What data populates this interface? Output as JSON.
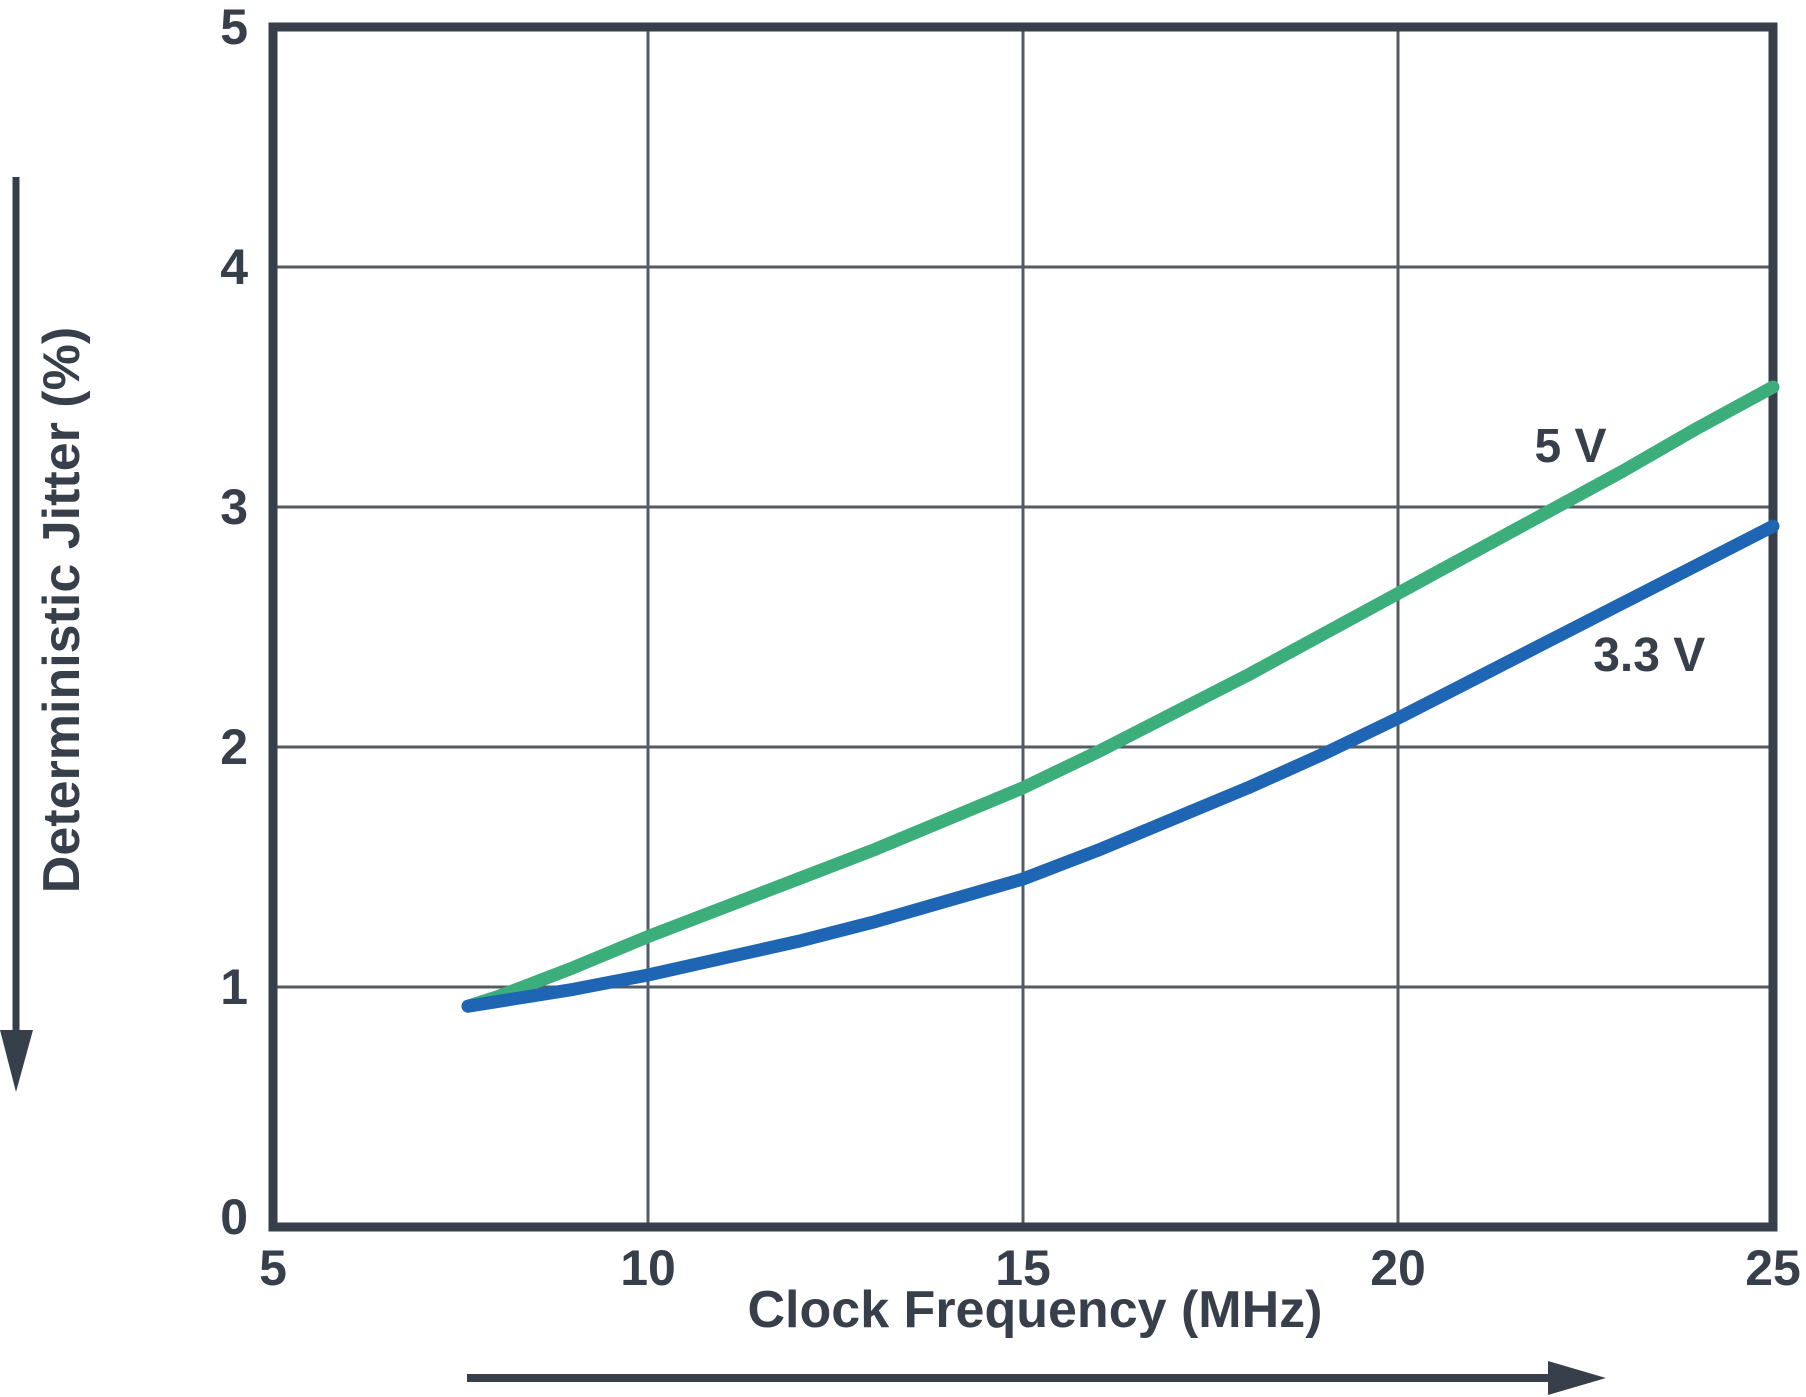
{
  "chart_data": {
    "type": "line",
    "title": "",
    "xlabel": "Clock Frequency (MHz)",
    "ylabel": "Deterministic Jitter (%)",
    "xlim": [
      5,
      25
    ],
    "ylim": [
      0,
      5
    ],
    "x_ticks": [
      5,
      10,
      15,
      20,
      25
    ],
    "y_ticks": [
      0,
      1,
      2,
      3,
      4,
      5
    ],
    "grid": true,
    "legend_position": "inline-labels-on-curves",
    "axis_arrows": {
      "x_direction": "right",
      "y_direction": "down"
    },
    "series": [
      {
        "name": "5 V",
        "color": "#3cae7c",
        "x": [
          7.6,
          8,
          9,
          10,
          11,
          12,
          13,
          14,
          15,
          16,
          17,
          18,
          19,
          20,
          21,
          22,
          23,
          24,
          25
        ],
        "values": [
          0.92,
          0.96,
          1.08,
          1.21,
          1.33,
          1.45,
          1.57,
          1.7,
          1.83,
          1.98,
          2.14,
          2.3,
          2.47,
          2.64,
          2.81,
          2.98,
          3.15,
          3.33,
          3.5
        ],
        "label_anchor": {
          "x": 22.3,
          "y": 3.25
        }
      },
      {
        "name": "3.3 V",
        "color": "#1e66b4",
        "x": [
          7.6,
          8,
          9,
          10,
          11,
          12,
          13,
          14,
          15,
          16,
          17,
          18,
          19,
          20,
          21,
          22,
          23,
          24,
          25
        ],
        "values": [
          0.92,
          0.94,
          0.99,
          1.05,
          1.12,
          1.19,
          1.27,
          1.36,
          1.45,
          1.57,
          1.7,
          1.83,
          1.97,
          2.12,
          2.28,
          2.44,
          2.6,
          2.76,
          2.92
        ],
        "label_anchor": {
          "x": 23.35,
          "y": 2.38
        }
      }
    ]
  },
  "colors": {
    "background": "#ffffff",
    "axis": "#373f4a",
    "grid": "#565b63",
    "text": "#373f4a"
  }
}
